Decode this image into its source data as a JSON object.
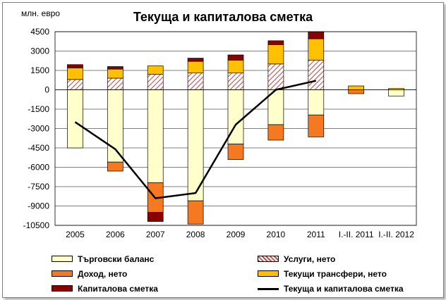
{
  "title": "Текуща и капиталова сметка",
  "unit_label": "млн. евро",
  "colors": {
    "trade": "#ffffcc",
    "services": "#c0504d",
    "income": "#f47920",
    "transfers": "#ffc000",
    "capital": "#8b0000",
    "line": "#000000"
  },
  "legend": [
    {
      "key": "trade",
      "label": "Търговски баланс",
      "type": "box"
    },
    {
      "key": "services",
      "label": "Услуги, нето",
      "type": "hatch"
    },
    {
      "key": "income",
      "label": "Доход, нето",
      "type": "box"
    },
    {
      "key": "transfers",
      "label": "Текущи трансфери, нето",
      "type": "box"
    },
    {
      "key": "capital",
      "label": "Капиталова сметка",
      "type": "box"
    },
    {
      "key": "line",
      "label": "Текуща и капиталова сметка",
      "type": "line"
    }
  ],
  "chart_data": {
    "type": "bar",
    "stacked": true,
    "title": "Текуща и капиталова сметка",
    "ylabel": "млн. евро",
    "categories": [
      "2005",
      "2006",
      "2007",
      "2008",
      "2009",
      "2010",
      "2011",
      "I.-II. 2011",
      "I.-II. 2012"
    ],
    "ylim": [
      -10500,
      4500
    ],
    "yticks": [
      4500,
      3000,
      1500,
      0,
      -1500,
      -3000,
      -4500,
      -6000,
      -7500,
      -9000,
      -10500
    ],
    "grid": true,
    "series": [
      {
        "name": "Търговски баланс",
        "key": "trade",
        "values": [
          -4500,
          -5600,
          -7200,
          -8600,
          -4200,
          -2700,
          -1950,
          0,
          -480
        ]
      },
      {
        "name": "Услуги, нето",
        "key": "services",
        "values": [
          800,
          900,
          1200,
          1300,
          1300,
          2000,
          2300,
          0,
          0
        ]
      },
      {
        "name": "Доход, нето",
        "key": "income",
        "values": [
          0,
          -700,
          -2300,
          -1800,
          -1200,
          -1200,
          -1700,
          -300,
          0
        ]
      },
      {
        "name": "Текущи трансфери, нето",
        "key": "transfers",
        "values": [
          900,
          700,
          650,
          900,
          1000,
          1500,
          1650,
          300,
          100
        ]
      },
      {
        "name": "Капиталова сметка",
        "key": "capital",
        "values": [
          250,
          200,
          -700,
          250,
          400,
          300,
          550,
          0,
          0
        ]
      },
      {
        "name": "Текуща и капиталова сметка",
        "key": "line",
        "type": "line",
        "values": [
          -2500,
          -4600,
          -8400,
          -8000,
          -2700,
          0,
          700,
          null,
          null
        ]
      }
    ]
  }
}
